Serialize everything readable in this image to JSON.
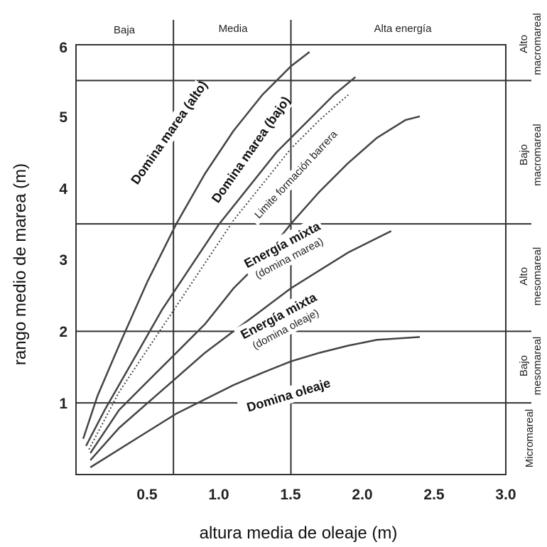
{
  "chart_data": {
    "type": "line",
    "xlabel": "altura media de oleaje (m)",
    "ylabel": "rango medio de marea (m)",
    "xlim": [
      0,
      3.0
    ],
    "ylim": [
      0,
      6
    ],
    "x_ticks": [
      "0.5",
      "1.0",
      "1.5",
      "2.0",
      "2.5",
      "3.0"
    ],
    "y_ticks": [
      "1",
      "2",
      "3",
      "4",
      "5",
      "6"
    ],
    "vertical_lines": [
      0.68,
      1.5
    ],
    "horizontal_lines": [
      1,
      2,
      3.5,
      5.5
    ],
    "wave_energy_bands": [
      "Baja",
      "Media",
      "Alta energía"
    ],
    "tide_bands": [
      {
        "line1": "Alto",
        "line2": "macromareal"
      },
      {
        "line1": "Bajo",
        "line2": "macromareal"
      },
      {
        "line1": "Alto",
        "line2": "mesomareal"
      },
      {
        "line1": "Bajo",
        "line2": "mesomareal"
      },
      {
        "line1": "Micromareal",
        "line2": ""
      }
    ],
    "series": [
      {
        "style": "solid",
        "x": [
          0.05,
          0.15,
          0.3,
          0.5,
          0.7,
          0.9,
          1.1,
          1.3,
          1.5,
          1.63
        ],
        "y": [
          0.5,
          1.1,
          1.8,
          2.7,
          3.5,
          4.2,
          4.8,
          5.3,
          5.7,
          5.9
        ]
      },
      {
        "style": "solid",
        "x": [
          0.07,
          0.2,
          0.4,
          0.6,
          0.8,
          1.0,
          1.2,
          1.4,
          1.6,
          1.8,
          1.95
        ],
        "y": [
          0.4,
          0.9,
          1.6,
          2.3,
          2.9,
          3.5,
          4.0,
          4.5,
          4.9,
          5.3,
          5.55
        ]
      },
      {
        "style": "dotted",
        "x": [
          0.09,
          0.3,
          0.5,
          0.7,
          0.9,
          1.1,
          1.3,
          1.5,
          1.7,
          1.9
        ],
        "y": [
          0.35,
          1.15,
          1.75,
          2.35,
          2.95,
          3.55,
          4.05,
          4.55,
          4.95,
          5.3
        ]
      },
      {
        "style": "solid",
        "x": [
          0.1,
          0.3,
          0.5,
          0.7,
          0.9,
          1.1,
          1.3,
          1.5,
          1.7,
          1.9,
          2.1,
          2.3,
          2.4
        ],
        "y": [
          0.3,
          0.9,
          1.3,
          1.7,
          2.1,
          2.6,
          3.0,
          3.5,
          3.95,
          4.35,
          4.7,
          4.95,
          5.0
        ]
      },
      {
        "style": "solid",
        "x": [
          0.1,
          0.3,
          0.5,
          0.7,
          0.9,
          1.1,
          1.3,
          1.5,
          1.7,
          1.9,
          2.1,
          2.2
        ],
        "y": [
          0.2,
          0.65,
          1.0,
          1.35,
          1.7,
          2.0,
          2.3,
          2.6,
          2.85,
          3.1,
          3.3,
          3.4
        ]
      },
      {
        "style": "solid",
        "x": [
          0.1,
          0.3,
          0.5,
          0.7,
          0.9,
          1.1,
          1.3,
          1.5,
          1.7,
          1.9,
          2.1,
          2.4
        ],
        "y": [
          0.1,
          0.35,
          0.6,
          0.85,
          1.05,
          1.25,
          1.42,
          1.58,
          1.7,
          1.8,
          1.88,
          1.92
        ]
      }
    ],
    "regions": {
      "domina_marea_alto": "Domina marea (alto)",
      "domina_marea_bajo": "Domina marea (bajo)",
      "limite_barrera": "Limite formación barrera",
      "energia_mixta_marea_1": "Energía mixta",
      "energia_mixta_marea_2": "(domina marea)",
      "energia_mixta_oleaje_1": "Energía mixta",
      "energia_mixta_oleaje_2": "(domina oleaje)",
      "domina_oleaje": "Domina oleaje"
    }
  }
}
